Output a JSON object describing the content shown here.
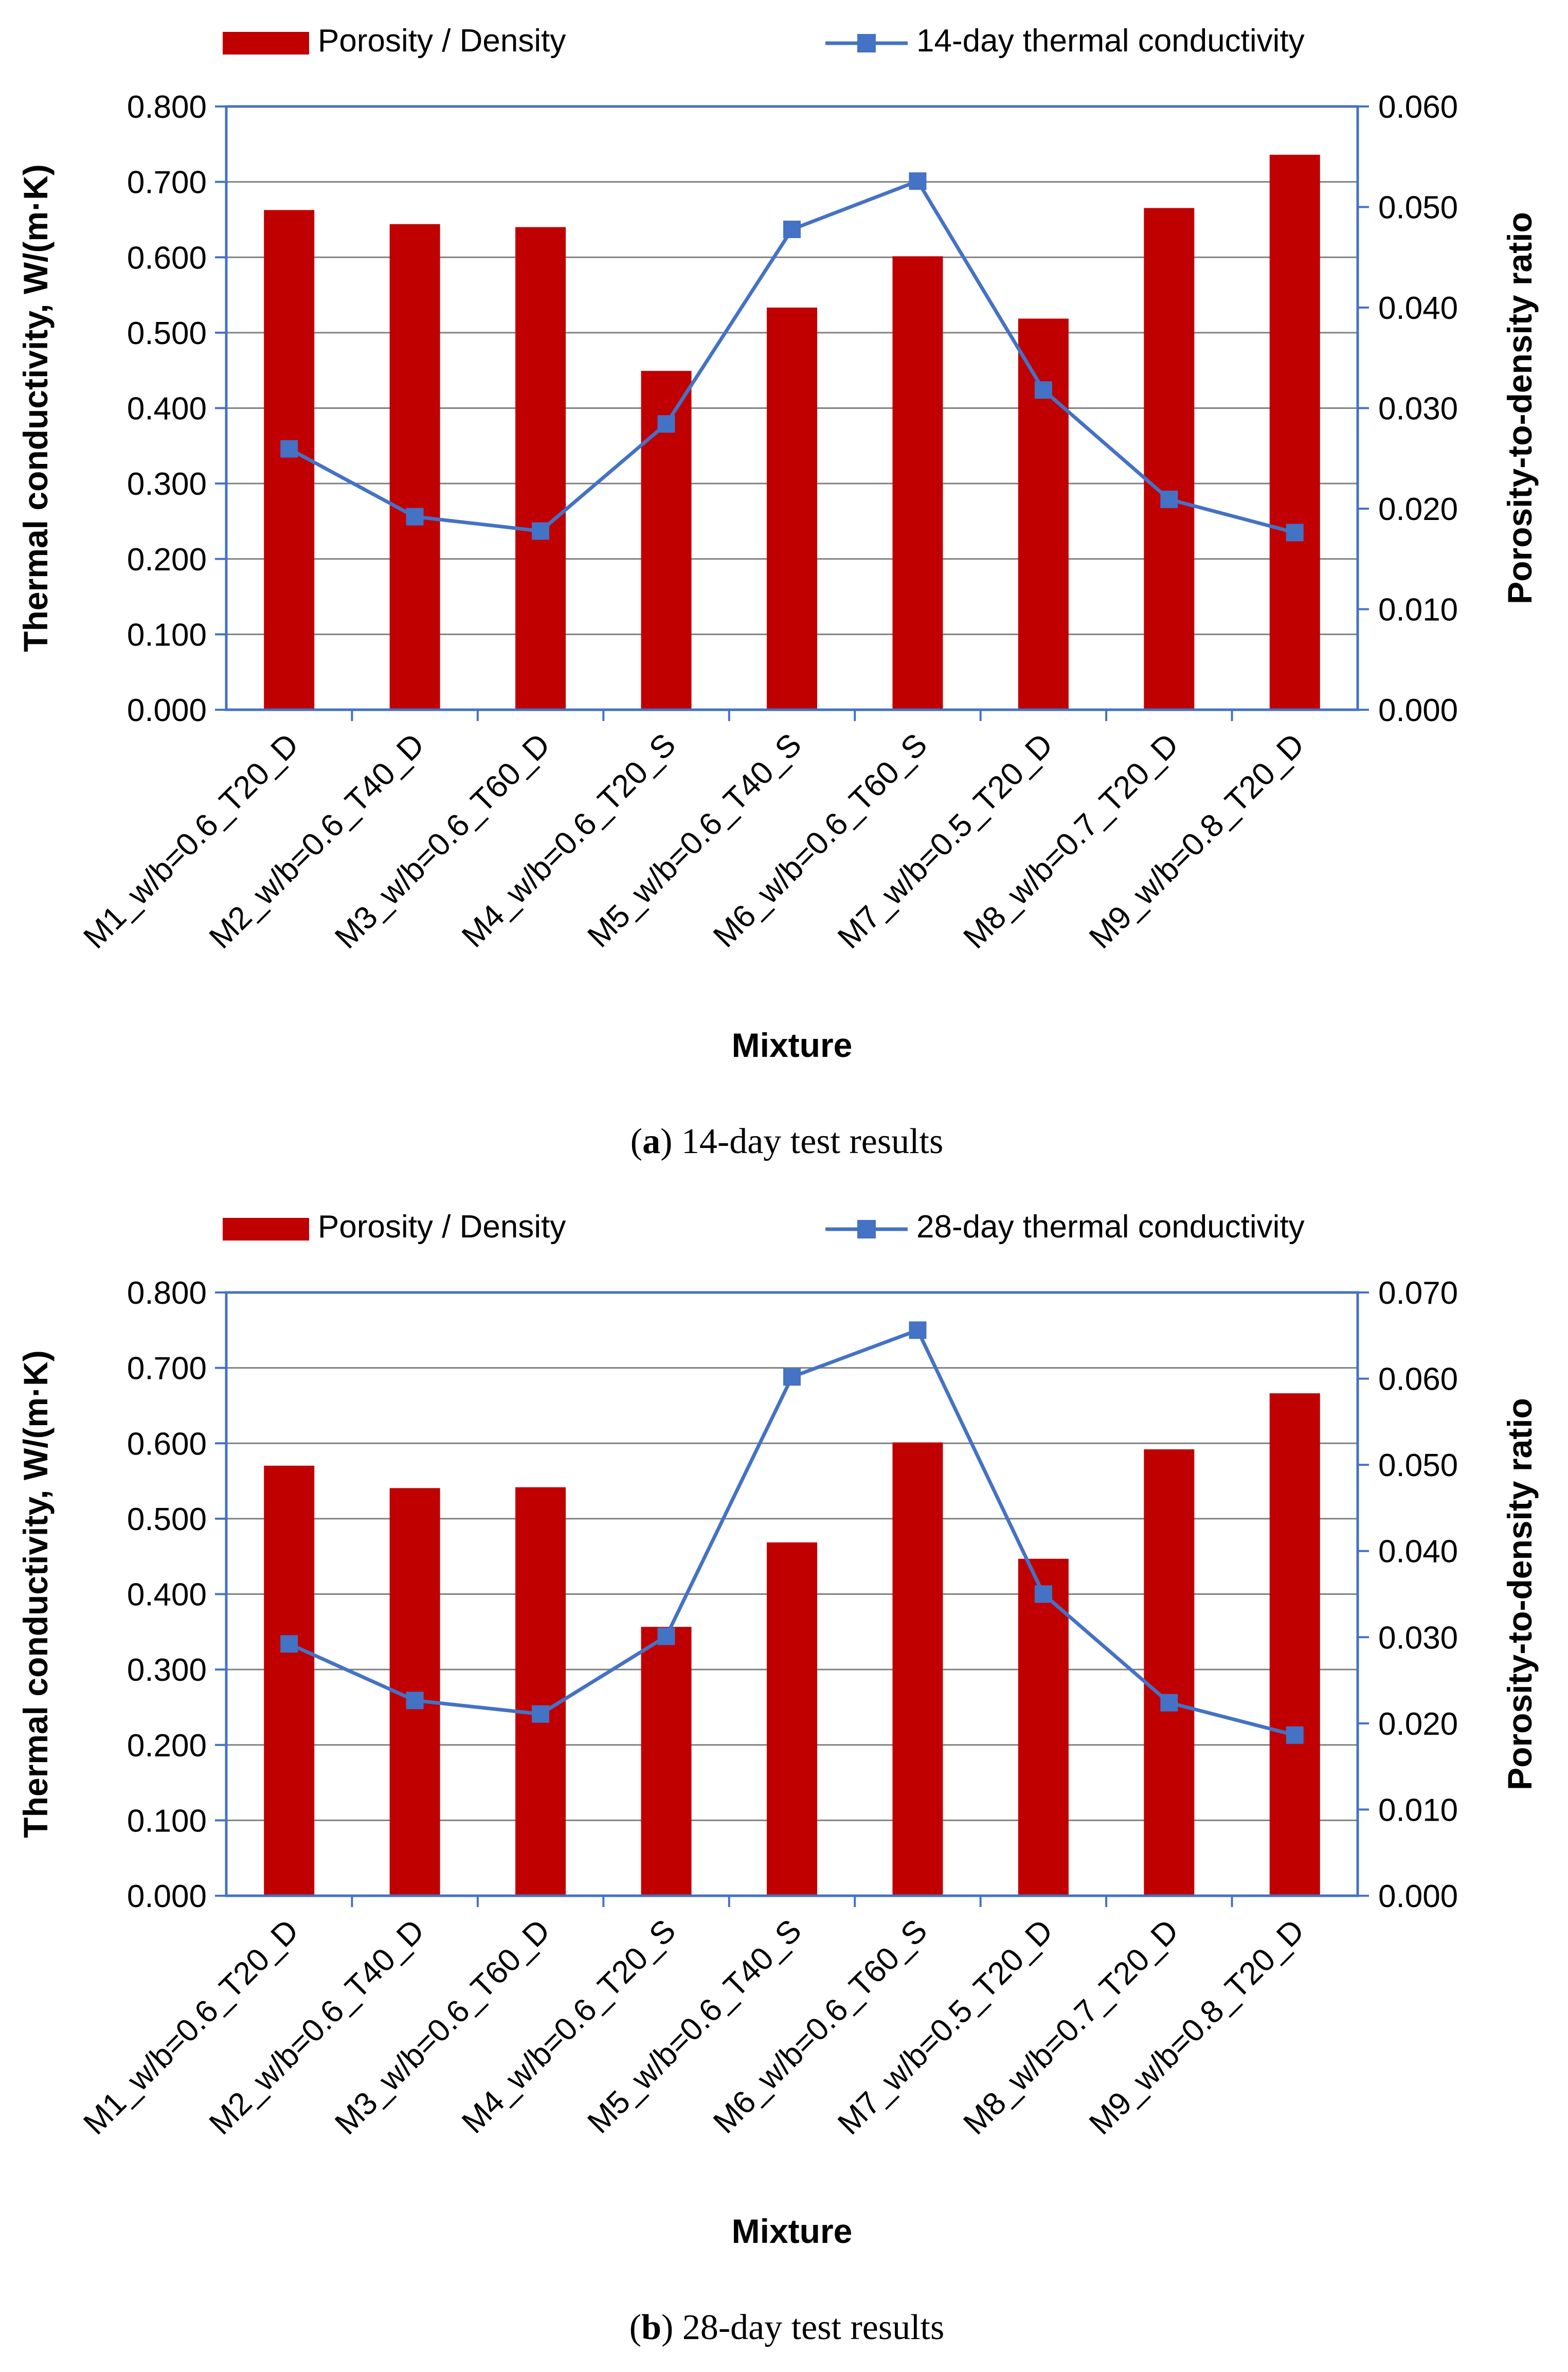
{
  "colors": {
    "bar": "#C00000",
    "line": "#4472C4",
    "marker_fill": "#4472C4",
    "grid": "#808080",
    "frame": "#4472C4",
    "text": "#000000"
  },
  "chart_data": [
    {
      "type": "bar",
      "caption_label": "a",
      "caption_text": ") 14-day test results",
      "caption_open": "(",
      "categories": [
        "M1_w/b=0.6_T20_D",
        "M2_w/b=0.6_T40_D",
        "M3_w/b=0.6_T60_D",
        "M4_w/b=0.6_T20_S",
        "M5_w/b=0.6_T40_S",
        "M6_w/b=0.6_T60_S",
        "M7_w/b=0.5_T20_D",
        "M8_w/b=0.7_T20_D",
        "M9_w/b=0.8_T20_D"
      ],
      "series": [
        {
          "name": "Porosity / Density",
          "kind": "bar",
          "axis": "y2",
          "values": [
            0.0497,
            0.0483,
            0.048,
            0.0337,
            0.04,
            0.0451,
            0.0389,
            0.0499,
            0.0552
          ]
        },
        {
          "name": "14-day thermal conductivity",
          "kind": "line",
          "axis": "y",
          "values": [
            0.346,
            0.256,
            0.237,
            0.379,
            0.637,
            0.701,
            0.424,
            0.279,
            0.235
          ]
        }
      ],
      "xlabel": "Mixture",
      "ylabel": "Thermal conductivity, W/(m·K)",
      "y2label": "Porosity-to-density ratio",
      "ylim": [
        0,
        0.8
      ],
      "y2lim": [
        0,
        0.06
      ],
      "yticks": [
        "0.000",
        "0.100",
        "0.200",
        "0.300",
        "0.400",
        "0.500",
        "0.600",
        "0.700",
        "0.800"
      ],
      "y2ticks": [
        "0.000",
        "0.010",
        "0.020",
        "0.030",
        "0.040",
        "0.050",
        "0.060"
      ],
      "grid": true,
      "legend": "top"
    },
    {
      "type": "bar",
      "caption_label": "b",
      "caption_text": ") 28-day test results",
      "caption_open": "(",
      "categories": [
        "M1_w/b=0.6_T20_D",
        "M2_w/b=0.6_T40_D",
        "M3_w/b=0.6_T60_D",
        "M4_w/b=0.6_T20_S",
        "M5_w/b=0.6_T40_S",
        "M6_w/b=0.6_T60_S",
        "M7_w/b=0.5_T20_D",
        "M8_w/b=0.7_T20_D",
        "M9_w/b=0.8_T20_D"
      ],
      "series": [
        {
          "name": "Porosity / Density",
          "kind": "bar",
          "axis": "y2",
          "values": [
            0.0499,
            0.0473,
            0.0474,
            0.0312,
            0.041,
            0.0526,
            0.0391,
            0.0518,
            0.0583
          ]
        },
        {
          "name": "28-day thermal conductivity",
          "kind": "line",
          "axis": "y",
          "values": [
            0.334,
            0.259,
            0.241,
            0.344,
            0.688,
            0.75,
            0.4,
            0.256,
            0.213
          ]
        }
      ],
      "xlabel": "Mixture",
      "ylabel": "Thermal conductivity, W/(m·K)",
      "y2label": "Porosity-to-density ratio",
      "ylim": [
        0,
        0.8
      ],
      "y2lim": [
        0,
        0.07
      ],
      "yticks": [
        "0.000",
        "0.100",
        "0.200",
        "0.300",
        "0.400",
        "0.500",
        "0.600",
        "0.700",
        "0.800"
      ],
      "y2ticks": [
        "0.000",
        "0.010",
        "0.020",
        "0.030",
        "0.040",
        "0.050",
        "0.060",
        "0.070"
      ],
      "grid": true,
      "legend": "top"
    }
  ]
}
